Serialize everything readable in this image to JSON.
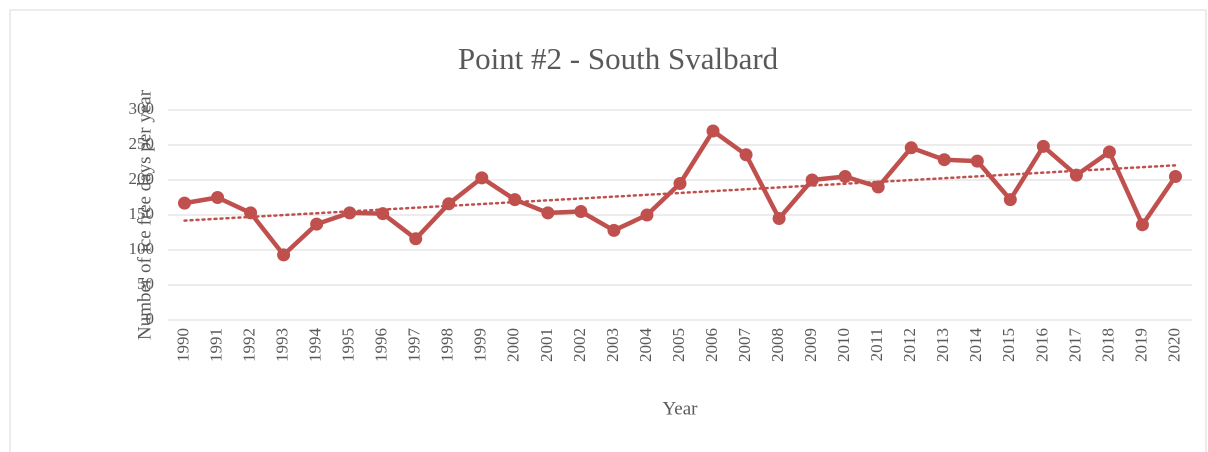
{
  "chart_data": {
    "type": "line",
    "title": "Point #2 - South Svalbard",
    "x_label": "Year",
    "y_label": "Number of ice free days per year",
    "categories": [
      "1990",
      "1991",
      "1992",
      "1993",
      "1994",
      "1995",
      "1996",
      "1997",
      "1998",
      "1999",
      "2000",
      "2001",
      "2002",
      "2003",
      "2004",
      "2005",
      "2006",
      "2007",
      "2008",
      "2009",
      "2010",
      "2011",
      "2012",
      "2013",
      "2014",
      "2015",
      "2016",
      "2017",
      "2018",
      "2019",
      "2020"
    ],
    "series": [
      {
        "color": "#c0504d",
        "values": [
          167,
          175,
          153,
          93,
          137,
          153,
          152,
          116,
          166,
          203,
          172,
          153,
          155,
          128,
          150,
          195,
          270,
          236,
          145,
          200,
          205,
          190,
          246,
          229,
          227,
          172,
          248,
          207,
          240,
          136,
          205
        ]
      }
    ],
    "trendline": {
      "color": "#c0504d",
      "values": [
        142,
        221
      ]
    },
    "ylim": [
      0,
      300
    ],
    "yticks": [
      0,
      50,
      100,
      150,
      200,
      250,
      300
    ],
    "grid": true
  }
}
